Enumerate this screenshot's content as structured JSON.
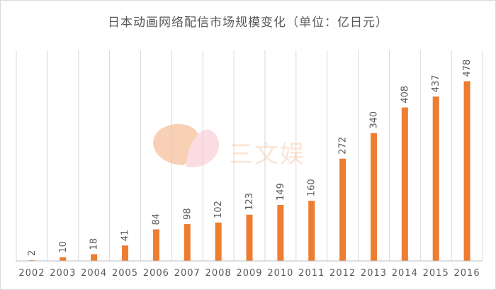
{
  "chart_data": {
    "type": "bar",
    "title": "日本动画网络配信市场规模变化（单位：亿日元）",
    "categories": [
      "2002",
      "2003",
      "2004",
      "2005",
      "2006",
      "2007",
      "2008",
      "2009",
      "2010",
      "2011",
      "2012",
      "2013",
      "2014",
      "2015",
      "2016"
    ],
    "values": [
      2,
      10,
      18,
      41,
      84,
      98,
      102,
      123,
      149,
      160,
      272,
      340,
      408,
      437,
      478
    ],
    "xlabel": "",
    "ylabel": "",
    "ylim": [
      0,
      560
    ],
    "grid": "vertical",
    "legend": "none",
    "bar_color": "#ed7d31"
  },
  "watermark": {
    "text": "三文娱",
    "colors": [
      "#f4b183",
      "#f7c6cf"
    ]
  }
}
